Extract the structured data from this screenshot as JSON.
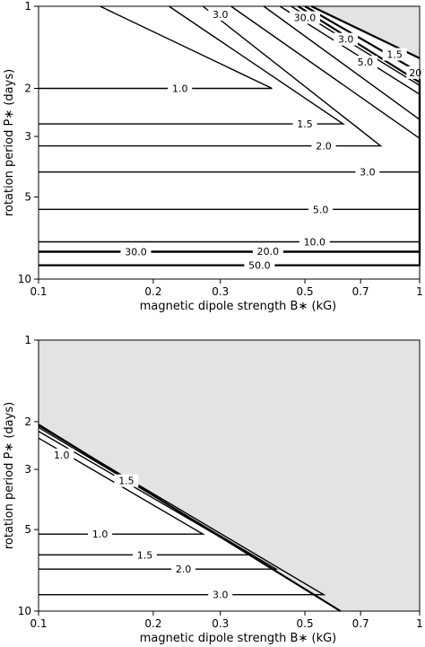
{
  "chart_data": [
    {
      "type": "contour",
      "title": "",
      "xlabel": "magnetic dipole strength B∗ (kG)",
      "ylabel": "rotation period P∗ (days)",
      "xscale": "log",
      "yscale": "log",
      "xlim": [
        0.1,
        1
      ],
      "ylim": [
        10,
        1
      ],
      "xtick_labels": [
        "0.1",
        "0.2",
        "0.3",
        "0.5",
        "0.7",
        "1"
      ],
      "xticks": [
        0.1,
        0.2,
        0.3,
        0.5,
        0.7,
        1
      ],
      "ytick_labels": [
        "1",
        "2",
        "3",
        "5",
        "10"
      ],
      "yticks": [
        1,
        2,
        3,
        5,
        10
      ],
      "excluded_region": {
        "color": "#e3e3e3",
        "boundary": [
          [
            0.52,
            1
          ],
          [
            1,
            1.55
          ]
        ]
      },
      "contours": [
        {
          "level": "1.0",
          "points": [
            [
              0.1,
              2
            ],
            [
              0.41,
              2
            ],
            [
              0.145,
              1
            ]
          ]
        },
        {
          "level": "1.5",
          "points": [
            [
              0.1,
              2.7
            ],
            [
              0.63,
              2.7
            ],
            [
              0.22,
              1
            ]
          ]
        },
        {
          "level": "2.0",
          "points": [
            [
              0.1,
              3.25
            ],
            [
              0.79,
              3.25
            ],
            [
              0.27,
              1
            ]
          ]
        },
        {
          "level": "3.0",
          "points": [
            [
              0.1,
              4.05
            ],
            [
              1,
              4.05
            ],
            [
              1,
              3.05
            ],
            [
              0.32,
              1
            ]
          ]
        },
        {
          "level": "5.0",
          "points": [
            [
              0.1,
              5.55
            ],
            [
              1,
              5.55
            ],
            [
              1,
              2.6
            ],
            [
              0.39,
              1
            ]
          ]
        },
        {
          "level": "10.0",
          "points": [
            [
              0.1,
              7.3
            ],
            [
              1,
              7.3
            ],
            [
              1,
              2.1
            ],
            [
              0.43,
              1
            ]
          ]
        },
        {
          "level": "20.0",
          "points": [
            [
              0.1,
              7.9
            ],
            [
              1,
              7.9
            ],
            [
              1,
              1.95
            ],
            [
              0.46,
              1
            ]
          ]
        },
        {
          "level": "30.0",
          "points": [
            [
              0.1,
              7.95
            ],
            [
              1,
              7.95
            ],
            [
              1,
              1.9
            ],
            [
              0.48,
              1
            ]
          ]
        },
        {
          "level": "50.0",
          "points": [
            [
              0.1,
              8.9
            ],
            [
              1,
              8.9
            ],
            [
              1,
              1.75
            ],
            [
              0.5,
              1
            ]
          ]
        }
      ],
      "labels": [
        {
          "text": "1.0",
          "x": 0.235,
          "y": 2
        },
        {
          "text": "1.5",
          "x": 0.5,
          "y": 2.7
        },
        {
          "text": "2.0",
          "x": 0.56,
          "y": 3.25
        },
        {
          "text": "3.0",
          "x": 0.73,
          "y": 4.05
        },
        {
          "text": "5.0",
          "x": 0.55,
          "y": 5.55
        },
        {
          "text": "10.0",
          "x": 0.53,
          "y": 7.3
        },
        {
          "text": "20.0",
          "x": 0.4,
          "y": 7.9
        },
        {
          "text": "30.0",
          "x": 0.18,
          "y": 7.95
        },
        {
          "text": "50.0",
          "x": 0.38,
          "y": 8.9
        },
        {
          "text": "3.0",
          "x": 0.3,
          "y": 1.07
        },
        {
          "text": "30.0",
          "x": 0.5,
          "y": 1.1
        },
        {
          "text": "3.0",
          "x": 0.64,
          "y": 1.32
        },
        {
          "text": "5.0",
          "x": 0.72,
          "y": 1.6
        },
        {
          "text": "1.5",
          "x": 0.86,
          "y": 1.5
        },
        {
          "text": "20",
          "x": 0.975,
          "y": 1.75
        }
      ]
    },
    {
      "type": "contour",
      "title": "",
      "xlabel": "magnetic dipole strength B∗ (kG)",
      "ylabel": "rotation period P∗ (days)",
      "xscale": "log",
      "yscale": "log",
      "xlim": [
        0.1,
        1
      ],
      "ylim": [
        10,
        1
      ],
      "xtick_labels": [
        "0.1",
        "0.2",
        "0.3",
        "0.5",
        "0.7",
        "1"
      ],
      "xticks": [
        0.1,
        0.2,
        0.3,
        0.5,
        0.7,
        1
      ],
      "ytick_labels": [
        "1",
        "2",
        "3",
        "5",
        "10"
      ],
      "yticks": [
        1,
        2,
        3,
        5,
        10
      ],
      "excluded_region": {
        "color": "#e3e3e3",
        "boundary": [
          [
            0.1,
            2.05
          ],
          [
            0.62,
            10
          ]
        ]
      },
      "contours": [
        {
          "level": "1.0",
          "points": [
            [
              0.1,
              5.2
            ],
            [
              0.27,
              5.2
            ],
            [
              0.1,
              2.3
            ]
          ]
        },
        {
          "level": "1.5",
          "points": [
            [
              0.1,
              6.2
            ],
            [
              0.36,
              6.2
            ],
            [
              0.1,
              2.17
            ]
          ]
        },
        {
          "level": "2.0",
          "points": [
            [
              0.1,
              7
            ],
            [
              0.42,
              7
            ],
            [
              0.1,
              2.1
            ]
          ]
        },
        {
          "level": "3.0",
          "points": [
            [
              0.1,
              8.7
            ],
            [
              0.56,
              8.7
            ],
            [
              0.1,
              2.07
            ]
          ]
        }
      ],
      "labels": [
        {
          "text": "1.0",
          "x": 0.145,
          "y": 5.2
        },
        {
          "text": "1.5",
          "x": 0.19,
          "y": 6.2
        },
        {
          "text": "2.0",
          "x": 0.24,
          "y": 7
        },
        {
          "text": "3.0",
          "x": 0.3,
          "y": 8.7
        },
        {
          "text": "1.0",
          "x": 0.115,
          "y": 2.65
        },
        {
          "text": "1.5",
          "x": 0.17,
          "y": 3.3
        }
      ]
    }
  ]
}
